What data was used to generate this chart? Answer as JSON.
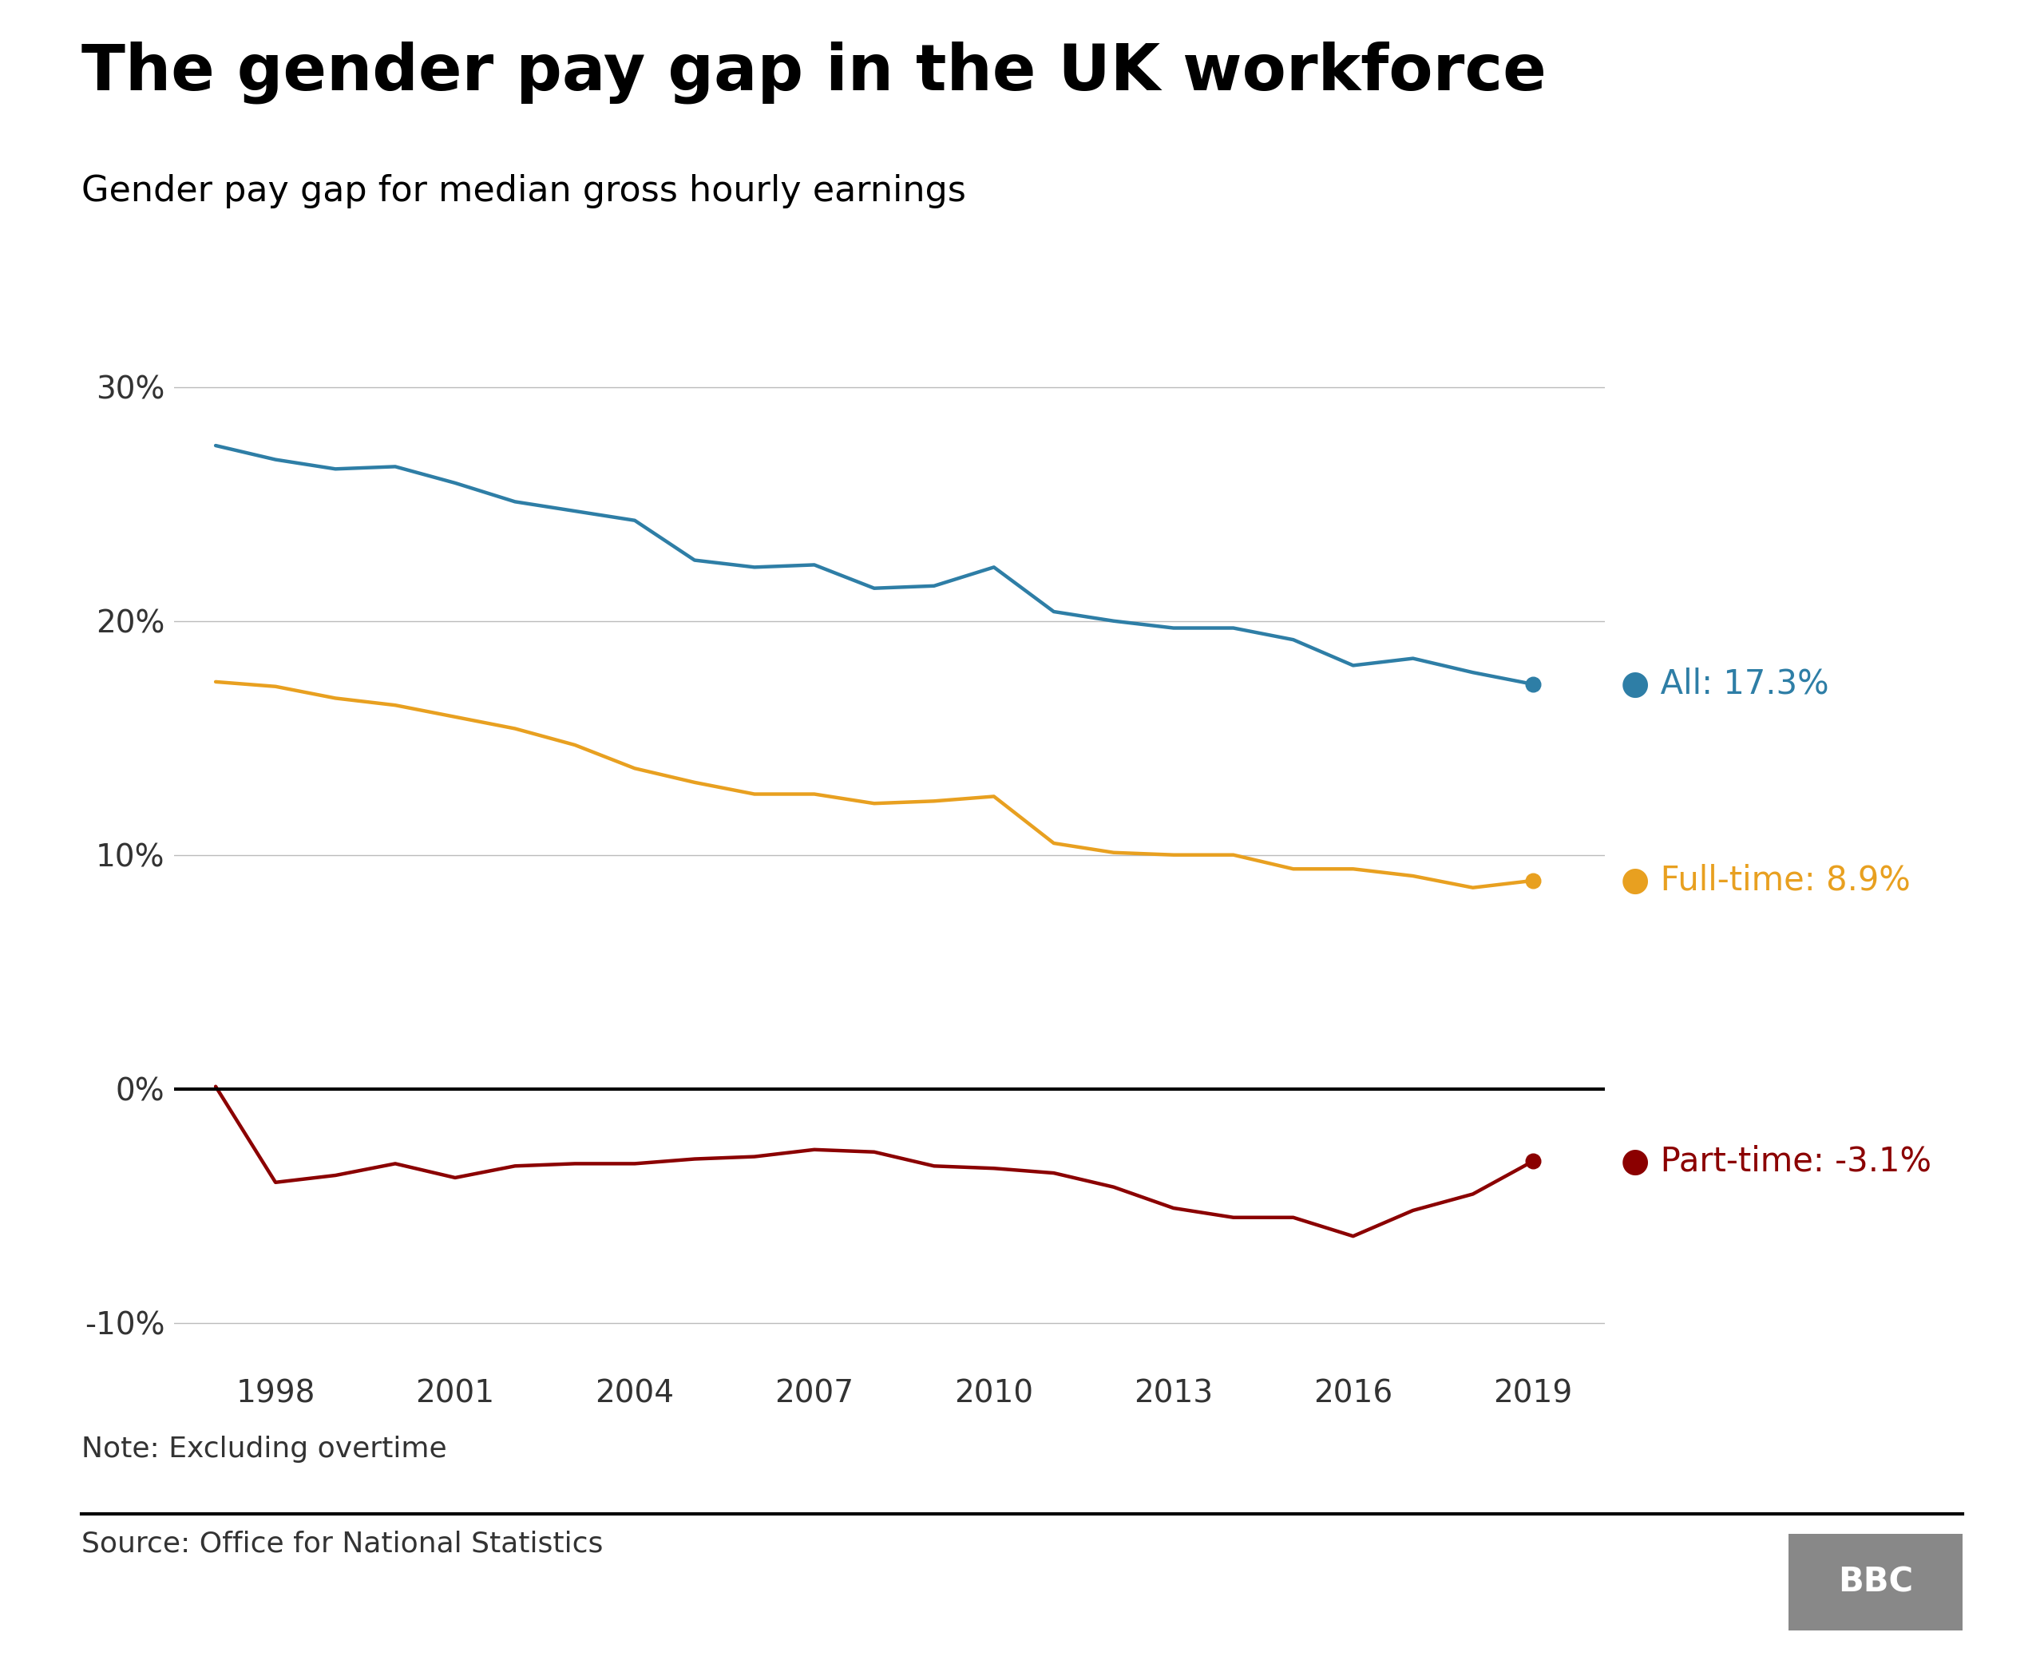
{
  "title": "The gender pay gap in the UK workforce",
  "subtitle": "Gender pay gap for median gross hourly earnings",
  "note": "Note: Excluding overtime",
  "source": "Source: Office for National Statistics",
  "bbc_label": "BBC",
  "years": [
    1997,
    1998,
    1999,
    2000,
    2001,
    2002,
    2003,
    2004,
    2005,
    2006,
    2007,
    2008,
    2009,
    2010,
    2011,
    2012,
    2013,
    2014,
    2015,
    2016,
    2017,
    2018,
    2019
  ],
  "all_workers": [
    27.5,
    26.9,
    26.5,
    26.6,
    25.9,
    25.1,
    24.7,
    24.3,
    22.6,
    22.3,
    22.4,
    21.4,
    21.5,
    22.3,
    20.4,
    20.0,
    19.7,
    19.7,
    19.2,
    18.1,
    18.4,
    17.8,
    17.3
  ],
  "fulltime": [
    17.4,
    17.2,
    16.7,
    16.4,
    15.9,
    15.4,
    14.7,
    13.7,
    13.1,
    12.6,
    12.6,
    12.2,
    12.3,
    12.5,
    10.5,
    10.1,
    10.0,
    10.0,
    9.4,
    9.4,
    9.1,
    8.6,
    8.9
  ],
  "parttime": [
    0.1,
    -4.0,
    -3.7,
    -3.2,
    -3.8,
    -3.3,
    -3.2,
    -3.2,
    -3.0,
    -2.9,
    -2.6,
    -2.7,
    -3.3,
    -3.4,
    -3.6,
    -4.2,
    -5.1,
    -5.5,
    -5.5,
    -6.3,
    -5.2,
    -4.5,
    -3.1
  ],
  "color_all": "#2e7ea6",
  "color_fulltime": "#e8a020",
  "color_parttime": "#8b0000",
  "color_zero_line": "#000000",
  "color_grid": "#bbbbbb",
  "color_bg": "#ffffff",
  "color_title": "#000000",
  "color_note": "#333333",
  "label_all": "All: 17.3%",
  "label_fulltime": "Full-time: 8.9%",
  "label_parttime": "Part-time: -3.1%",
  "ylim": [
    -12,
    32
  ],
  "yticks": [
    -10,
    0,
    10,
    20,
    30
  ],
  "xticks": [
    1998,
    2001,
    2004,
    2007,
    2010,
    2013,
    2016,
    2019
  ],
  "linewidth": 3.2,
  "title_fontsize": 58,
  "subtitle_fontsize": 32,
  "tick_fontsize": 28,
  "label_fontsize": 30,
  "note_fontsize": 26,
  "source_fontsize": 26
}
